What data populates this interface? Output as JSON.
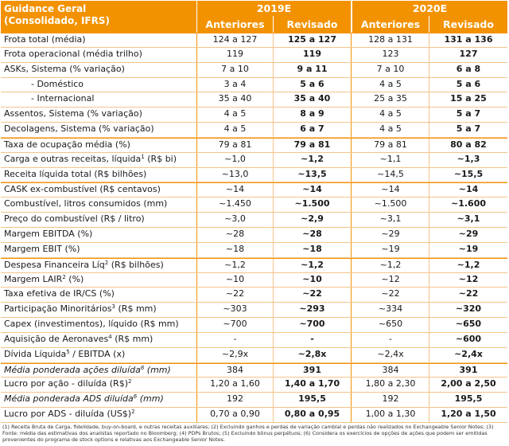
{
  "header": {
    "title_line1": "Guidance Geral",
    "title_line2": "(Consolidado, IFRS)",
    "year_2019": "2019E",
    "year_2020": "2020E",
    "col_prev_2019": "Anteriores",
    "col_rev_2019": "Revisado",
    "col_prev_2020": "Anteriores",
    "col_rev_2020": "Revisado"
  },
  "rows": [
    {
      "label": "Frota total (média)",
      "v": [
        "124 a 127",
        "125 a 127",
        "128 a 131",
        "131 a 136"
      ]
    },
    {
      "label": "Frota operacional (média trilho)",
      "v": [
        "119",
        "119",
        "123",
        "127"
      ]
    },
    {
      "label": "ASKs, Sistema (% variação)",
      "v": [
        "7 a 10",
        "9 a 11",
        "7 a 10",
        "6 a 8"
      ]
    },
    {
      "label": "- Doméstico",
      "v": [
        "3 a 4",
        "5 a 6",
        "4 a 5",
        "5 a 6"
      ]
    },
    {
      "label": "- Internacional",
      "v": [
        "35 a 40",
        "35 a 40",
        "25 a 35",
        "15 a 25"
      ]
    },
    {
      "label": "Assentos, Sistema (% variação)",
      "v": [
        "4 a 5",
        "8 a 9",
        "4 a 5",
        "5 a 7"
      ]
    },
    {
      "label": "Decolagens, Sistema (% variação)",
      "v": [
        "4 a 5",
        "6 a 7",
        "4 a 5",
        "5 a 7"
      ]
    },
    {
      "label": "Taxa de ocupação média (%)",
      "v": [
        "79 a 81",
        "79 a 81",
        "79 a 81",
        "80 a 82"
      ]
    },
    {
      "label": "Carga e outras receitas, líquida",
      "sup": "1",
      "label_tail": " (R$ bi)",
      "v": [
        "~1,0",
        "~1,2",
        "~1,1",
        "~1,3"
      ]
    },
    {
      "label": "Receita líquida total (R$ bilhões)",
      "v": [
        "~13,0",
        "~13,5",
        "~14,5",
        "~15,5"
      ]
    },
    {
      "label": "CASK ex-combustível (R$ centavos)",
      "v": [
        "~14",
        "~14",
        "~14",
        "~14"
      ]
    },
    {
      "label": "Combustível, litros consumidos (mm)",
      "v": [
        "~1.450",
        "~1.500",
        "~1.500",
        "~1.600"
      ]
    },
    {
      "label": "Preço do combustível (R$ / litro)",
      "v": [
        "~3,0",
        "~2,9",
        "~3,1",
        "~3,1"
      ]
    },
    {
      "label": "Margem EBITDA (%)",
      "v": [
        "~28",
        "~28",
        "~29",
        "~29"
      ]
    },
    {
      "label": "Margem EBIT (%)",
      "v": [
        "~18",
        "~18",
        "~19",
        "~19"
      ]
    },
    {
      "label": "Despesa Financeira Líq",
      "sup": "2",
      "label_tail": " (R$ bilhões)",
      "v": [
        "~1,2",
        "~1,2",
        "~1,2",
        "~1,2"
      ]
    },
    {
      "label": "Margem LAIR",
      "sup": "2",
      "label_tail": " (%)",
      "v": [
        "~10",
        "~10",
        "~12",
        "~12"
      ]
    },
    {
      "label": "Taxa efetiva de IR/CS (%)",
      "v": [
        "~22",
        "~22",
        "~22",
        "~22"
      ]
    },
    {
      "label": "Participação Minoritários",
      "sup": "3",
      "label_tail": " (R$ mm)",
      "v": [
        "~303",
        "~293",
        "~334",
        "~320"
      ]
    },
    {
      "label": "Capex (investimentos), líquido (R$ mm)",
      "v": [
        "~700",
        "~700",
        "~650",
        "~650"
      ]
    },
    {
      "label": "Aquisição de Aeronaves",
      "sup": "4",
      "label_tail": " (R$ mm)",
      "v": [
        "-",
        "-",
        "-",
        "~600"
      ]
    },
    {
      "label": "Dívida Líquida",
      "sup": "5",
      "label_tail": " / EBITDA (x)",
      "v": [
        "~2,9x",
        "~2,8x",
        "~2,4x",
        "~2,4x"
      ]
    },
    {
      "label": "Média ponderada ações diluída",
      "sup": "6",
      "label_tail": " (mm)",
      "v": [
        "384",
        "391",
        "384",
        "391"
      ]
    },
    {
      "label": "Lucro por ação - diluída (R$)",
      "sup": "2",
      "label_tail": "",
      "v": [
        "1,20 a 1,60",
        "1,40 a 1,70",
        "1,80 a 2,30",
        "2,00 a 2,50"
      ]
    },
    {
      "label": "Média ponderada ADS diluída",
      "sup": "6",
      "label_tail": " (mm)",
      "v": [
        "192",
        "195,5",
        "192",
        "195,5"
      ]
    },
    {
      "label": "Lucro por ADS - diluída (US$)",
      "sup": "2",
      "label_tail": "",
      "v": [
        "0,70 a 0,90",
        "0,80 a 0,95",
        "1,00 a 1,30",
        "1,20 a 1,50"
      ]
    }
  ],
  "footnote": "(1) Receita Bruta de Carga, fidelidade, buy-on-board, e outras receitas auxiliares; (2) Excluindo ganhos e perdas de variação cambial e perdas não realizados no Exchangeable Senior Notes; (3) Fonte: média das estimativas dos analistas reportado no Bloomberg; (4) PDPs Brutos; (5) Excluindo bônus perpétuos; (6) Considera os exercícios de opções de ações que podem ser emitidas provenientes do programa de stock options e relativas aos Exchangeable Senior Notes.",
  "colors": {
    "accent": "#f39200",
    "row_line": "#f5c48a"
  }
}
